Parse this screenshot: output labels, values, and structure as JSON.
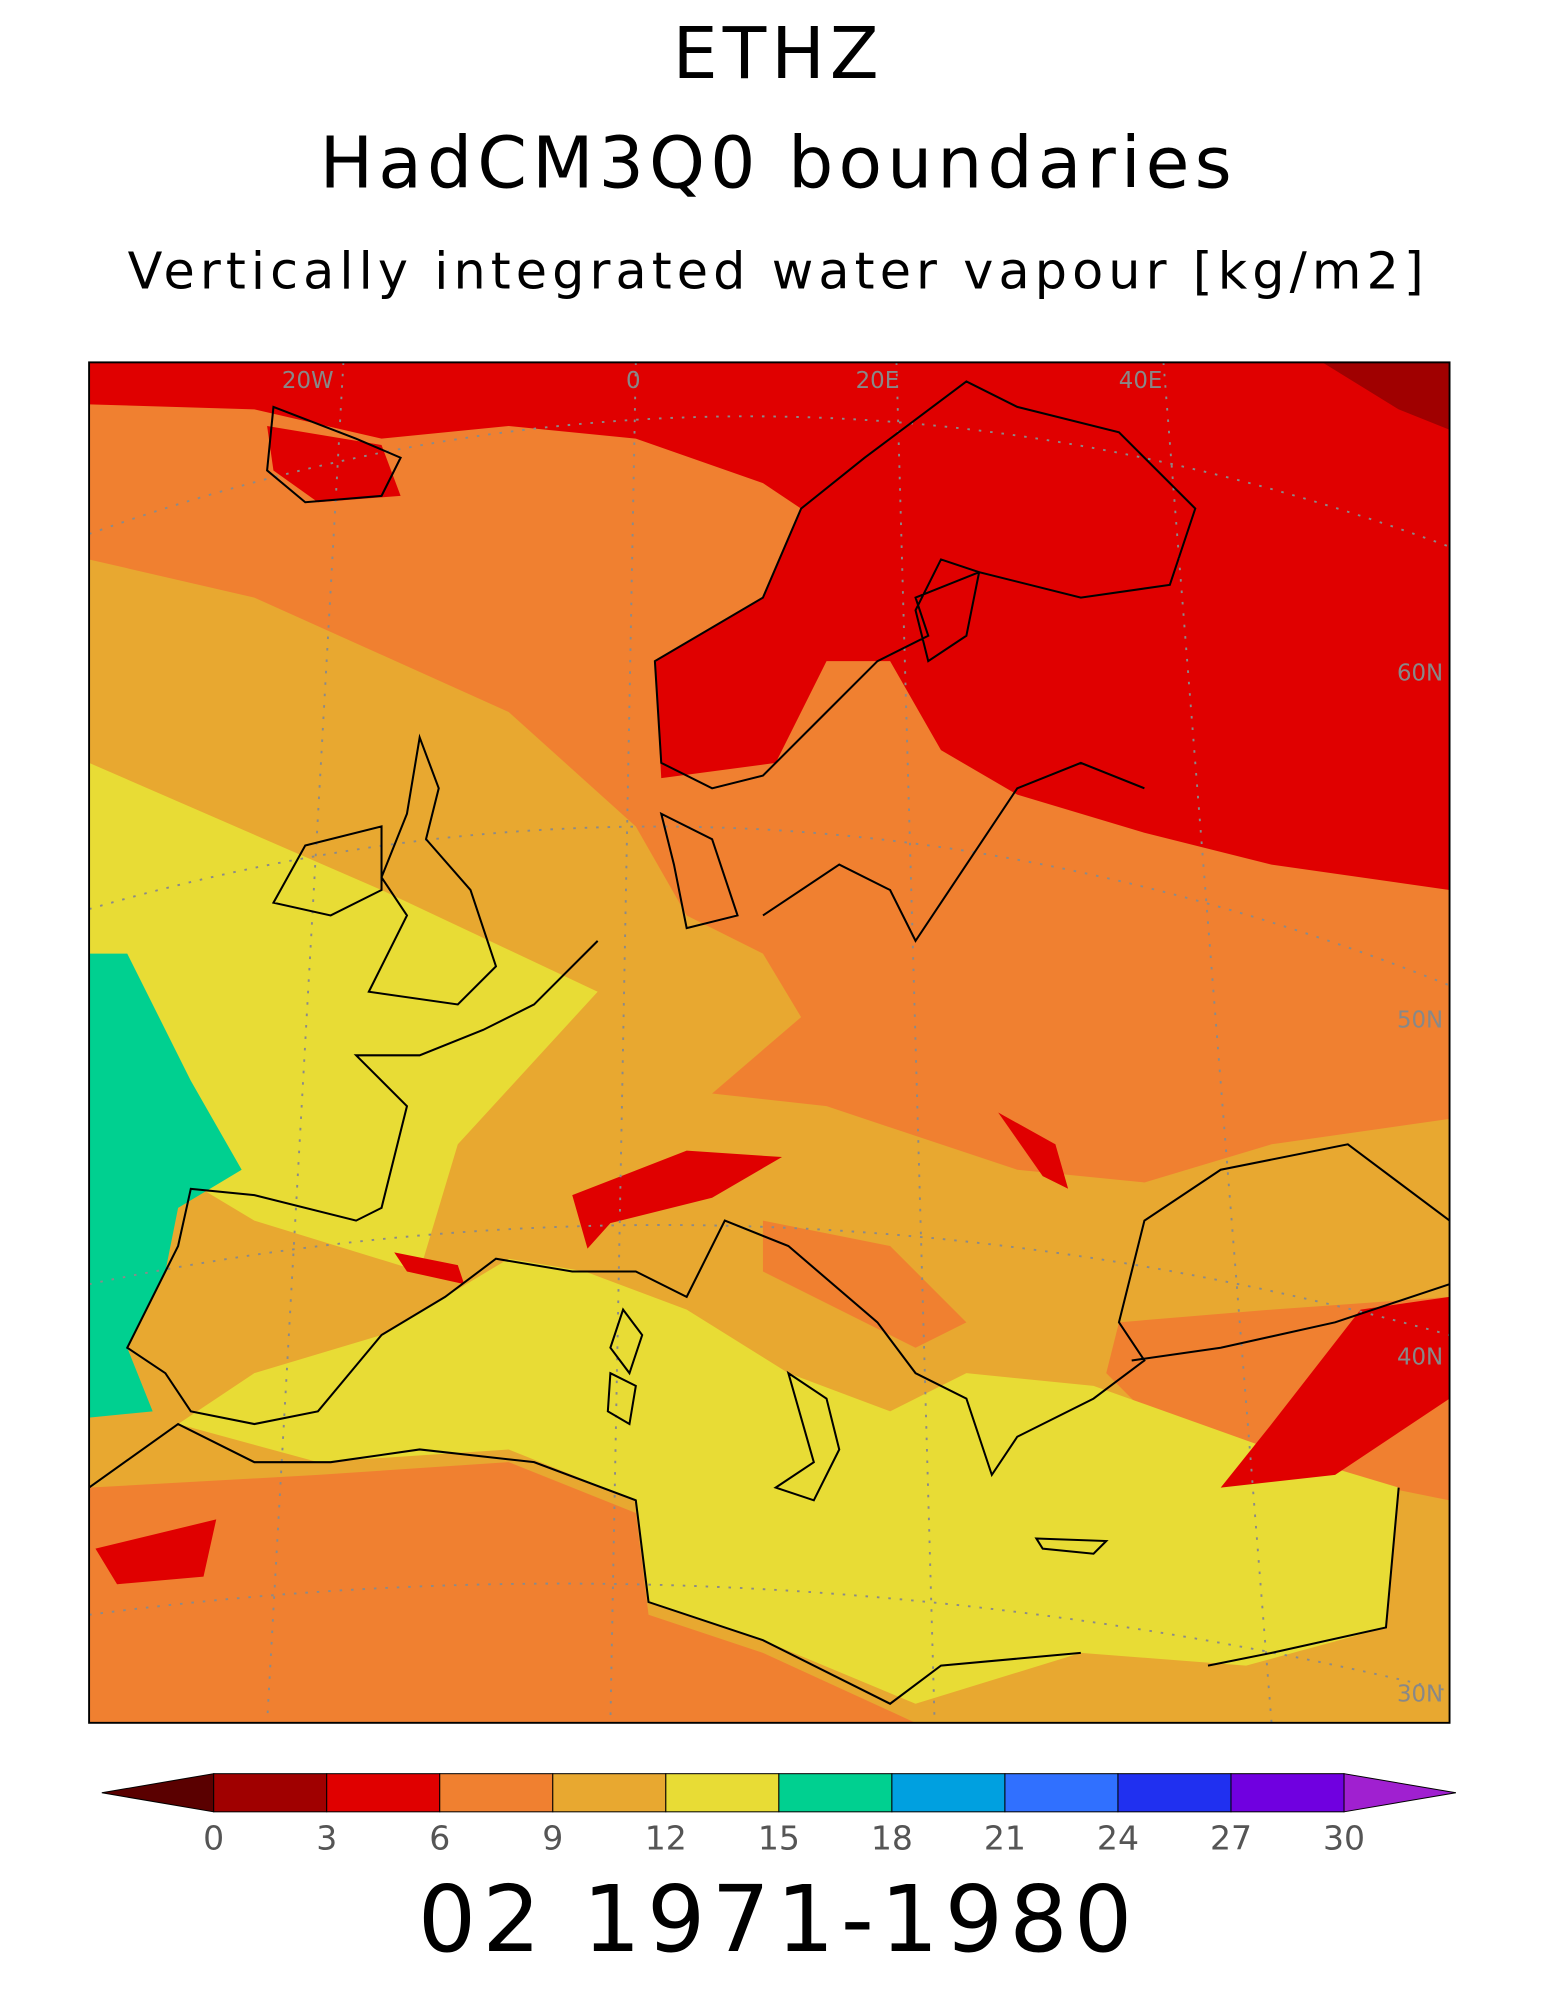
{
  "header": {
    "model": "ETHZ",
    "boundaries": "HadCM3Q0 boundaries",
    "variable": "Vertically integrated water vapour [kg/m2]"
  },
  "map": {
    "lon_labels": [
      "20W",
      "0",
      "20E",
      "40E"
    ],
    "lat_labels": [
      "60N",
      "50N",
      "40N",
      "30N"
    ]
  },
  "colorbar": {
    "ticks": [
      0,
      3,
      6,
      9,
      12,
      15,
      18,
      21,
      24,
      27,
      30
    ],
    "colors": [
      "#5a0000",
      "#a00000",
      "#e00000",
      "#f08030",
      "#e8a830",
      "#e8dc35",
      "#00d090",
      "#00a0e0",
      "#3070ff",
      "#2030f0",
      "#7000e0",
      "#a020d0"
    ]
  },
  "footer": "02 1971-1980"
}
